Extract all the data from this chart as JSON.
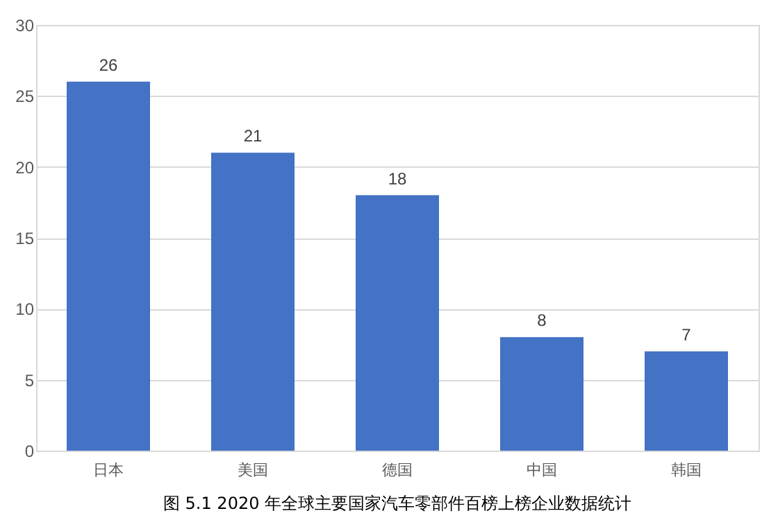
{
  "chart_data": {
    "type": "bar",
    "title": "图 5.1 2020 年全球主要国家汽车零部件百榜上榜企业数据统计",
    "categories": [
      "日本",
      "美国",
      "德国",
      "中国",
      "韩国"
    ],
    "values": [
      26,
      21,
      18,
      8,
      7
    ],
    "color": "#4472c4",
    "ylim": [
      0,
      30
    ],
    "yticks": [
      0,
      5,
      10,
      15,
      20,
      25,
      30
    ],
    "grid": "y",
    "data_labels": true
  }
}
